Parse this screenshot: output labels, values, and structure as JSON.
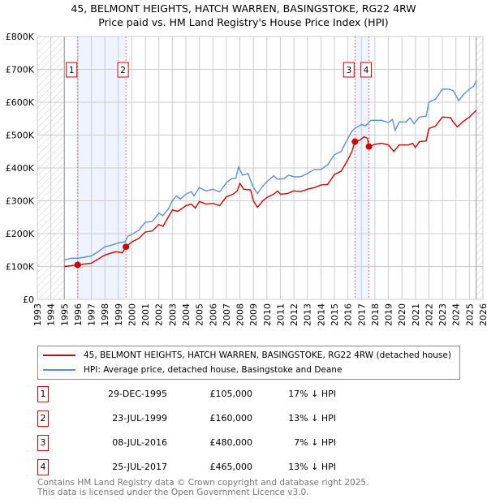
{
  "chart_data": {
    "type": "line",
    "title": "45, BELMONT HEIGHTS, HATCH WARREN, BASINGSTOKE, RG22 4RW",
    "subtitle": "Price paid vs. HM Land Registry's House Price Index (HPI)",
    "xlim": [
      1993,
      2026
    ],
    "ylim": [
      0,
      800000
    ],
    "x_ticks": [
      "1993",
      "1994",
      "1995",
      "1996",
      "1997",
      "1998",
      "1999",
      "2000",
      "2001",
      "2002",
      "2003",
      "2004",
      "2005",
      "2006",
      "2007",
      "2008",
      "2009",
      "2010",
      "2011",
      "2012",
      "2013",
      "2014",
      "2015",
      "2016",
      "2017",
      "2018",
      "2019",
      "2020",
      "2021",
      "2022",
      "2023",
      "2024",
      "2025",
      "2026"
    ],
    "y_ticks": [
      {
        "v": 0,
        "label": "£0"
      },
      {
        "v": 100000,
        "label": "£100K"
      },
      {
        "v": 200000,
        "label": "£200K"
      },
      {
        "v": 300000,
        "label": "£300K"
      },
      {
        "v": 400000,
        "label": "£400K"
      },
      {
        "v": 500000,
        "label": "£500K"
      },
      {
        "v": 600000,
        "label": "£600K"
      },
      {
        "v": 700000,
        "label": "£700K"
      },
      {
        "v": 800000,
        "label": "£800K"
      }
    ],
    "grid": true,
    "colors": {
      "price": "#cc0000",
      "hpi": "#5b8fd4",
      "shade": "#eef3fd",
      "marker_line": "#e05050"
    },
    "hatched_ranges": [
      [
        1993,
        1995
      ],
      [
        2025.5,
        2026
      ]
    ],
    "shaded_ranges": [
      [
        1995.99,
        1999.56
      ],
      [
        2016.52,
        2017.56
      ]
    ],
    "series": [
      {
        "name": "45, BELMONT HEIGHTS, HATCH WARREN, BASINGSTOKE, RG22 4RW (detached house)",
        "key": "price",
        "points": [
          [
            1995,
            100
          ],
          [
            1995.99,
            105
          ],
          [
            1997,
            110
          ],
          [
            1998,
            135
          ],
          [
            1998.8,
            145
          ],
          [
            1999.3,
            142
          ],
          [
            1999.56,
            160
          ],
          [
            2000,
            175
          ],
          [
            2000.5,
            185
          ],
          [
            2001,
            205
          ],
          [
            2001.5,
            208
          ],
          [
            2002,
            228
          ],
          [
            2002.3,
            222
          ],
          [
            2003,
            272
          ],
          [
            2003.4,
            268
          ],
          [
            2004,
            285
          ],
          [
            2004.4,
            290
          ],
          [
            2004.7,
            278
          ],
          [
            2005,
            298
          ],
          [
            2005.5,
            290
          ],
          [
            2006,
            292
          ],
          [
            2006.5,
            285
          ],
          [
            2007,
            312
          ],
          [
            2007.5,
            320
          ],
          [
            2007.8,
            330
          ],
          [
            2008,
            353
          ],
          [
            2008.3,
            335
          ],
          [
            2008.8,
            333
          ],
          [
            2009,
            300
          ],
          [
            2009.3,
            280
          ],
          [
            2009.7,
            300
          ],
          [
            2010,
            310
          ],
          [
            2010.5,
            320
          ],
          [
            2010.8,
            330
          ],
          [
            2011,
            320
          ],
          [
            2011.5,
            322
          ],
          [
            2012,
            330
          ],
          [
            2012.5,
            328
          ],
          [
            2013,
            335
          ],
          [
            2013.5,
            340
          ],
          [
            2014,
            348
          ],
          [
            2014.5,
            350
          ],
          [
            2015,
            380
          ],
          [
            2015.5,
            390
          ],
          [
            2016,
            425
          ],
          [
            2016.3,
            450
          ],
          [
            2016.52,
            480
          ],
          [
            2016.9,
            485
          ],
          [
            2017.2,
            495
          ],
          [
            2017.45,
            490
          ],
          [
            2017.56,
            465
          ],
          [
            2018,
            472
          ],
          [
            2018.5,
            475
          ],
          [
            2019,
            470
          ],
          [
            2019.4,
            450
          ],
          [
            2019.8,
            470
          ],
          [
            2020.5,
            470
          ],
          [
            2020.8,
            475
          ],
          [
            2021,
            462
          ],
          [
            2021.3,
            480
          ],
          [
            2021.8,
            482
          ],
          [
            2022,
            520
          ],
          [
            2022.5,
            528
          ],
          [
            2023,
            555
          ],
          [
            2023.6,
            553
          ],
          [
            2023.8,
            540
          ],
          [
            2024.1,
            525
          ],
          [
            2024.5,
            540
          ],
          [
            2025,
            555
          ],
          [
            2025.5,
            575
          ]
        ]
      },
      {
        "name": "HPI: Average price, detached house, Basingstoke and Deane",
        "key": "hpi",
        "points": [
          [
            1995,
            120
          ],
          [
            1995.5,
            125
          ],
          [
            1996,
            125
          ],
          [
            1997,
            132
          ],
          [
            1997.5,
            145
          ],
          [
            1998,
            160
          ],
          [
            1998.5,
            165
          ],
          [
            1999,
            172
          ],
          [
            1999.5,
            175
          ],
          [
            1999.7,
            192
          ],
          [
            2000,
            198
          ],
          [
            2000.5,
            210
          ],
          [
            2001,
            235
          ],
          [
            2001.5,
            237
          ],
          [
            2002,
            262
          ],
          [
            2002.3,
            255
          ],
          [
            2002.7,
            275
          ],
          [
            2003,
            300
          ],
          [
            2003.3,
            315
          ],
          [
            2003.6,
            305
          ],
          [
            2004,
            320
          ],
          [
            2004.4,
            328
          ],
          [
            2004.6,
            315
          ],
          [
            2005,
            340
          ],
          [
            2005.5,
            330
          ],
          [
            2006,
            335
          ],
          [
            2006.5,
            327
          ],
          [
            2007,
            355
          ],
          [
            2007.4,
            368
          ],
          [
            2007.7,
            368
          ],
          [
            2007.9,
            403
          ],
          [
            2008.2,
            378
          ],
          [
            2008.6,
            383
          ],
          [
            2009,
            340
          ],
          [
            2009.3,
            322
          ],
          [
            2009.7,
            345
          ],
          [
            2010,
            358
          ],
          [
            2010.5,
            376
          ],
          [
            2010.8,
            365
          ],
          [
            2011.3,
            368
          ],
          [
            2011.6,
            378
          ],
          [
            2012,
            373
          ],
          [
            2012.5,
            373
          ],
          [
            2013,
            383
          ],
          [
            2013.5,
            395
          ],
          [
            2014,
            395
          ],
          [
            2014.5,
            410
          ],
          [
            2015,
            440
          ],
          [
            2015.5,
            450
          ],
          [
            2016,
            490
          ],
          [
            2016.3,
            512
          ],
          [
            2016.5,
            520
          ],
          [
            2017,
            532
          ],
          [
            2017.3,
            528
          ],
          [
            2017.7,
            545
          ],
          [
            2018.5,
            545
          ],
          [
            2019,
            538
          ],
          [
            2019.3,
            548
          ],
          [
            2019.5,
            515
          ],
          [
            2019.8,
            540
          ],
          [
            2020.3,
            540
          ],
          [
            2020.6,
            552
          ],
          [
            2020.9,
            535
          ],
          [
            2021.3,
            555
          ],
          [
            2021.8,
            558
          ],
          [
            2022,
            600
          ],
          [
            2022.5,
            610
          ],
          [
            2023,
            640
          ],
          [
            2023.5,
            640
          ],
          [
            2023.8,
            635
          ],
          [
            2024.2,
            605
          ],
          [
            2024.6,
            625
          ],
          [
            2025,
            640
          ],
          [
            2025.3,
            648
          ],
          [
            2025.5,
            665
          ]
        ]
      }
    ],
    "sales": [
      {
        "id": "1",
        "x": 1995.99,
        "price": 105000,
        "date": "29-DEC-1995",
        "price_label": "£105,000",
        "hpi_label": "17% ↓ HPI"
      },
      {
        "id": "2",
        "x": 1999.56,
        "price": 160000,
        "date": "23-JUL-1999",
        "price_label": "£160,000",
        "hpi_label": "13% ↓ HPI"
      },
      {
        "id": "3",
        "x": 2016.52,
        "price": 480000,
        "date": "08-JUL-2016",
        "price_label": "£480,000",
        "hpi_label": "7% ↓ HPI"
      },
      {
        "id": "4",
        "x": 2017.56,
        "price": 465000,
        "date": "25-JUL-2017",
        "price_label": "£465,000",
        "hpi_label": "13% ↓ HPI"
      }
    ]
  },
  "footer": {
    "line1": "Contains HM Land Registry data © Crown copyright and database right 2025.",
    "line2": "This data is licensed under the Open Government Licence v3.0."
  }
}
